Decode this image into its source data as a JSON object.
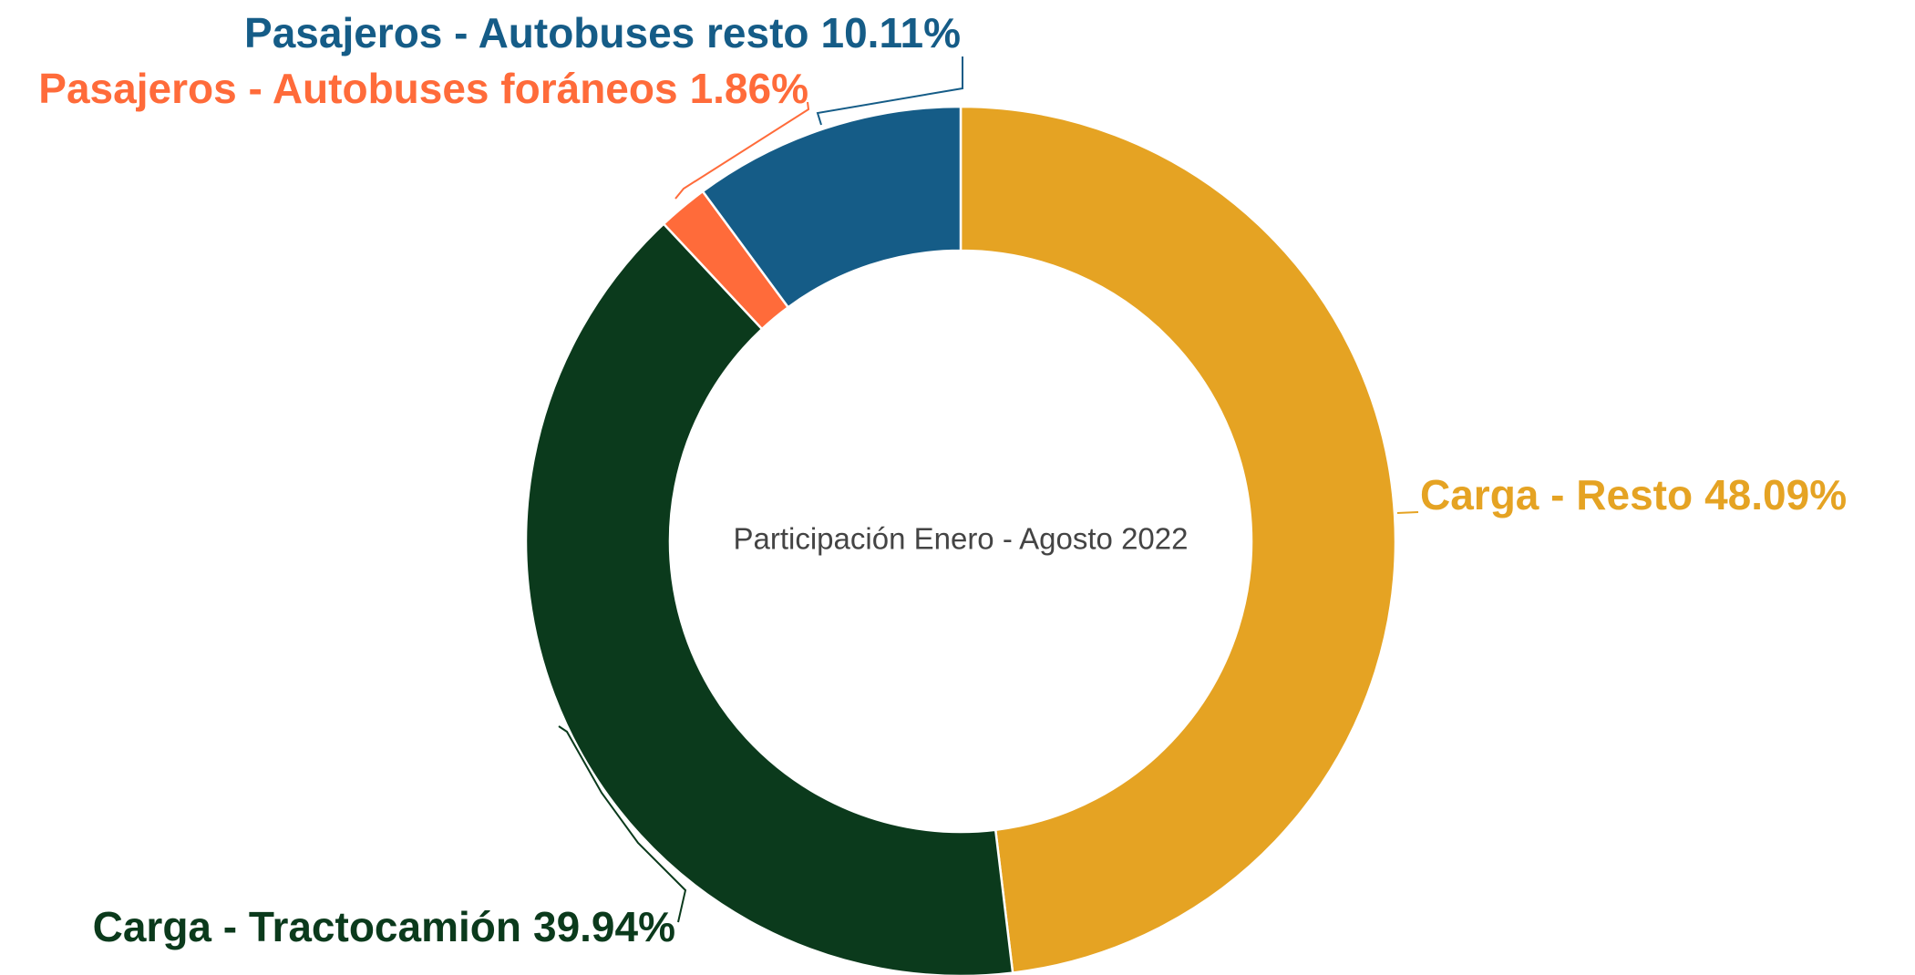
{
  "chart_data": {
    "type": "pie",
    "title": "Participación Enero - Agosto 2022",
    "categories": [
      "Carga - Resto",
      "Carga - Tractocamión",
      "Pasajeros - Autobuses foráneos",
      "Pasajeros - Autobuses resto"
    ],
    "values": [
      48.09,
      39.94,
      1.86,
      10.11
    ],
    "value_labels": [
      "48.09%",
      "39.94%",
      "1.86%",
      "10.11%"
    ],
    "colors": [
      "#e5a323",
      "#0b3a1c",
      "#ff6b3a",
      "#155c87"
    ]
  }
}
